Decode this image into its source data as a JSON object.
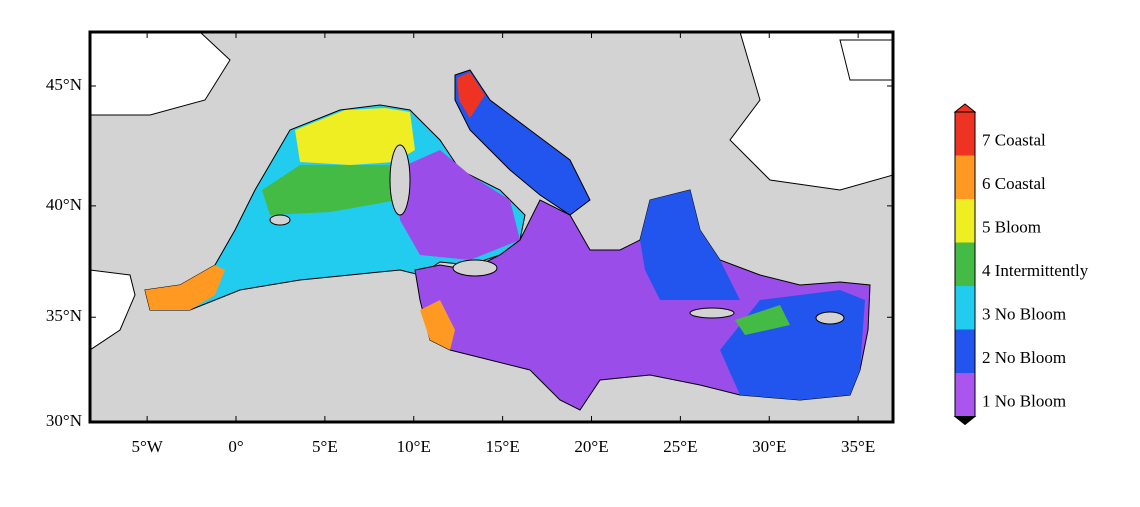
{
  "map": {
    "lat_ticks": [
      {
        "value": 45,
        "label": "45°N"
      },
      {
        "value": 40,
        "label": "40°N"
      },
      {
        "value": 35,
        "label": "35°N"
      },
      {
        "value": 30,
        "label": "30°N"
      }
    ],
    "lon_ticks": [
      {
        "value": -5,
        "label": "5°W"
      },
      {
        "value": 0,
        "label": "0°"
      },
      {
        "value": 5,
        "label": "5°E"
      },
      {
        "value": 10,
        "label": "10°E"
      },
      {
        "value": 15,
        "label": "15°E"
      },
      {
        "value": 20,
        "label": "20°E"
      },
      {
        "value": 25,
        "label": "25°E"
      },
      {
        "value": 30,
        "label": "30°E"
      },
      {
        "value": 35,
        "label": "35°E"
      }
    ],
    "legend": [
      {
        "label": "7 Coastal",
        "color": "#ee3322"
      },
      {
        "label": "6 Coastal",
        "color": "#ff9922"
      },
      {
        "label": "5 Bloom",
        "color": "#eeee22"
      },
      {
        "label": "4 Intermittently",
        "color": "#44bb44"
      },
      {
        "label": "3 No Bloom",
        "color": "#22ccee"
      },
      {
        "label": "2 No Bloom",
        "color": "#2255ee"
      },
      {
        "label": "1 No Bloom",
        "color": "#aa55ee"
      }
    ]
  }
}
